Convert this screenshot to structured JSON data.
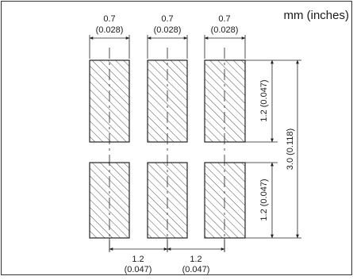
{
  "units_label": "mm (inches)",
  "pad_width": {
    "mm": "0.7",
    "in": "(0.028)"
  },
  "pad_length": "1.2 (0.047)",
  "overall_length": "3.0 (0.118)",
  "pitch": {
    "mm": "1.2",
    "in": "(0.047)"
  },
  "pads": {
    "columns": 3,
    "rows": 2,
    "hatch": "diagonal"
  }
}
